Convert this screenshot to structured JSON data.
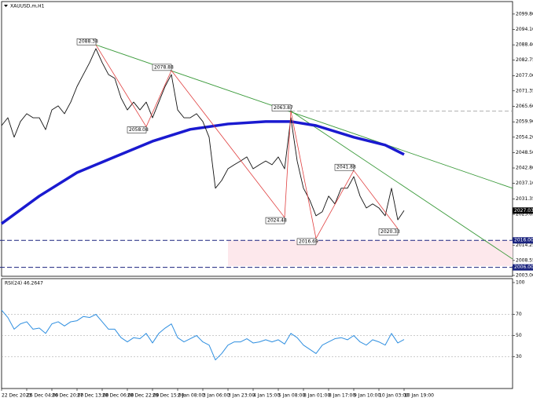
{
  "chart_data": {
    "type": "line",
    "title": "XAUUSD,m,H1",
    "xlim": [
      -0.25,
      81.25
    ],
    "xticks": [
      {
        "value": 0,
        "label": "22 Dec 2023"
      },
      {
        "value": 4,
        "label": "26 Dec 04:00"
      },
      {
        "value": 8,
        "label": "26 Dec 20:00"
      },
      {
        "value": 12,
        "label": "27 Dec 13:00"
      },
      {
        "value": 16,
        "label": "28 Dec 06:00"
      },
      {
        "value": 20,
        "label": "28 Dec 22:00"
      },
      {
        "value": 24,
        "label": "29 Dec 15:00"
      },
      {
        "value": 28,
        "label": "2 Jan 08:00"
      },
      {
        "value": 32,
        "label": "3 Jan 06:00"
      },
      {
        "value": 36,
        "label": "3 Jan 23:00"
      },
      {
        "value": 40,
        "label": "4 Jan 15:00"
      },
      {
        "value": 44,
        "label": "5 Jan 08:00"
      },
      {
        "value": 48,
        "label": "8 Jan 01:00"
      },
      {
        "value": 52,
        "label": "8 Jan 17:00"
      },
      {
        "value": 56,
        "label": "9 Jan 10:00"
      },
      {
        "value": 60,
        "label": "10 Jan 03:00"
      },
      {
        "value": 64,
        "label": "10 Jan 19:00"
      }
    ],
    "ylim": [
      2002.7,
      2105
    ],
    "yticks": [
      {
        "value": 2099.8,
        "label": "2099.80"
      },
      {
        "value": 2094.1,
        "label": "2094.10"
      },
      {
        "value": 2088.4,
        "label": "2088.40"
      },
      {
        "value": 2082.75,
        "label": "2082.75"
      },
      {
        "value": 2077,
        "label": "2077.00"
      },
      {
        "value": 2071.35,
        "label": "2071.35"
      },
      {
        "value": 2065.6,
        "label": "2065.60"
      },
      {
        "value": 2059.9,
        "label": "2059.90"
      },
      {
        "value": 2054.2,
        "label": "2054.20"
      },
      {
        "value": 2048.5,
        "label": "2048.50"
      },
      {
        "value": 2042.8,
        "label": "2042.80"
      },
      {
        "value": 2037.1,
        "label": "2037.10"
      },
      {
        "value": 2031.35,
        "label": "2031.35"
      },
      {
        "value": 2025.65,
        "label": "2025.65"
      },
      {
        "value": 2014.25,
        "label": "2014.25"
      },
      {
        "value": 2008.55,
        "label": "2008.55"
      },
      {
        "value": 2003,
        "label": "2003.00"
      }
    ],
    "series": [
      {
        "name": "XAUUSD",
        "color": "#111111",
        "values": [
          2058.5,
          2061.4,
          2054.2,
          2060,
          2062.9,
          2061.4,
          2061.4,
          2057,
          2064.3,
          2065.8,
          2062.9,
          2067.2,
          2073,
          2077.4,
          2081.8,
          2087,
          2081.8,
          2077.4,
          2076,
          2068.7,
          2064.3,
          2067.2,
          2064.3,
          2067.2,
          2061.4,
          2067.2,
          2073,
          2077.4,
          2064.3,
          2061.4,
          2061.4,
          2062.9,
          2060,
          2054.2,
          2035.3,
          2038.2,
          2042.5,
          2044,
          2045.4,
          2046.9,
          2042.5,
          2044,
          2045.4,
          2044,
          2046.9,
          2042.5,
          2061.4,
          2045.4,
          2035.3,
          2030.9,
          2025.1,
          2026.6,
          2032.4,
          2029.5,
          2035.3,
          2035.3,
          2039.6,
          2032.4,
          2028,
          2029.5,
          2028,
          2025.1,
          2035.3,
          2023.6,
          2027.03
        ]
      }
    ],
    "moving_average": {
      "color": "#1a1ad0",
      "x": [
        0,
        6,
        12,
        18,
        24,
        30,
        36,
        42,
        46,
        50,
        56,
        61,
        64
      ],
      "values": [
        2022.2,
        2032.4,
        2041.1,
        2046.9,
        2052.7,
        2057.1,
        2059.1,
        2060,
        2060,
        2058.5,
        2054.2,
        2051.3,
        2047.8
      ]
    },
    "zigzag": {
      "color": "#e04040",
      "x": [
        15,
        23,
        27,
        45,
        46,
        50,
        56,
        63
      ],
      "values": [
        2088.38,
        2058.08,
        2078.88,
        2024.48,
        2063.87,
        2016.69,
        2041.88,
        2020.33
      ]
    },
    "trendlines": [
      {
        "color": "#3a9a3a",
        "x": [
          15,
          81.25
        ],
        "values": [
          2088.4,
          2035.3
        ]
      },
      {
        "color": "#3a9a3a",
        "x": [
          46,
          81.25
        ],
        "values": [
          2063.9,
          2009.1
        ]
      }
    ],
    "resistance": {
      "x": 46,
      "value": 2063.87,
      "color": "#999999"
    },
    "hlines": [
      {
        "value": 2016,
        "label": "2016.00",
        "color": "#1a237e"
      },
      {
        "value": 2006,
        "label": "2006.00",
        "color": "#1a237e"
      }
    ],
    "zone": {
      "x": 36,
      "range": [
        2006.5,
        2016
      ],
      "color": "#fde8ec"
    },
    "rsi": {
      "name": "RSI(24)",
      "color": "#2f8fe0",
      "ylim": [
        0,
        100
      ],
      "yticks": [
        100,
        70,
        50,
        30
      ],
      "levels": [
        70,
        50,
        30
      ],
      "values": [
        74,
        67,
        56,
        61,
        63,
        56,
        57,
        52,
        61,
        63,
        59,
        63,
        64,
        68,
        67,
        70,
        63,
        56,
        56,
        48,
        44,
        48,
        47,
        52,
        43,
        52,
        57,
        61,
        48,
        44,
        47,
        50,
        44,
        41,
        27,
        33,
        41,
        44,
        44,
        47,
        43,
        44,
        46,
        44,
        46,
        42,
        52,
        48,
        41,
        37,
        33,
        41,
        44,
        47,
        48,
        46,
        50,
        44,
        41,
        46,
        44,
        41,
        52,
        43,
        46.2647
      ]
    }
  }
}
